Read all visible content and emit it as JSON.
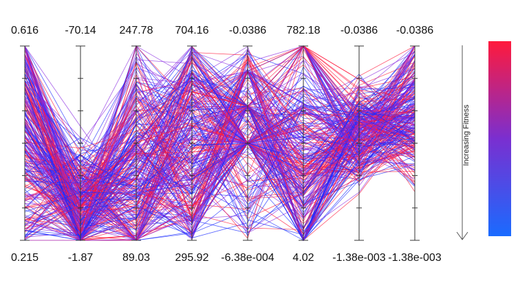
{
  "chart_data": {
    "type": "parallel_coordinates",
    "axes": [
      {
        "max": "0.616",
        "min": "0.215"
      },
      {
        "max": "-70.14",
        "min": "-1.87"
      },
      {
        "max": "247.78",
        "min": "89.03"
      },
      {
        "max": "704.16",
        "min": "295.92"
      },
      {
        "max": "-0.0386",
        "min": "-6.38e-004"
      },
      {
        "max": "782.18",
        "min": "4.02"
      },
      {
        "max": "-0.0386",
        "min": "-1.38e-003"
      },
      {
        "max": "-0.0386",
        "min": "-1.38e-003"
      }
    ],
    "ticks_per_axis": 7,
    "line_count": 300,
    "colorbar": {
      "label": "Increasing Fitness",
      "color_top": "#ff1a3c",
      "color_bottom": "#1a6bff"
    },
    "line_colors": [
      "#ff1a3c",
      "#1a2bff",
      "#8a2be2"
    ]
  }
}
